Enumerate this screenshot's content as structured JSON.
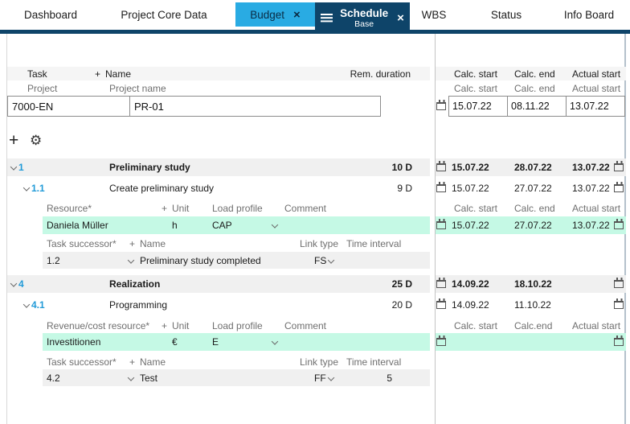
{
  "tabs": {
    "items": [
      {
        "label": "Dashboard"
      },
      {
        "label": "Project Core Data"
      },
      {
        "label": "Budget"
      },
      {
        "label": "Schedule",
        "sublabel": "Base"
      },
      {
        "label": "WBS"
      },
      {
        "label": "Status"
      },
      {
        "label": "Info Board"
      }
    ]
  },
  "glyphs": {
    "plus": "+",
    "close": "×",
    "gear": "⚙"
  },
  "colors": {
    "accent_cyan": "#29abe3",
    "accent_navy": "#0e4469",
    "row_green": "#c5f9e5",
    "row_gray": "#f0f0f0",
    "task_number_blue": "#229bd8"
  },
  "grid": {
    "left_header": {
      "task": "Task",
      "name": "Name",
      "rem_duration": "Rem. duration"
    },
    "right_header": {
      "calc_start": "Calc. start",
      "calc_end": "Calc. end",
      "actual_start": "Actual start"
    },
    "project": {
      "label_id": "Project",
      "label_name": "Project name",
      "id": "7000-EN",
      "name": "PR-01",
      "sub_calc_start": "Calc. start",
      "sub_calc_end": "Calc. end",
      "sub_actual_start": "Actual start",
      "calc_start": "15.07.22",
      "calc_end": "08.11.22",
      "actual_start": "13.07.22"
    }
  },
  "sections": [
    {
      "number": "1",
      "name": "Preliminary study",
      "duration": "10 D",
      "calc_start": "15.07.22",
      "calc_end": "28.07.22",
      "actual_start": "13.07.22",
      "child": {
        "number": "1.1",
        "name": "Create preliminary study",
        "duration": "9 D",
        "calc_start": "15.07.22",
        "calc_end": "27.07.22",
        "actual_start": "13.07.22"
      },
      "resource_header": {
        "name": "Resource*",
        "unit": "Unit",
        "load": "Load profile",
        "comment": "Comment"
      },
      "date_subheader": {
        "calc_start": "Calc. start",
        "calc_end": "Calc. end",
        "actual_start": "Actual start"
      },
      "resource": {
        "name": "Daniela Müller",
        "unit": "h",
        "load": "CAP",
        "calc_start": "15.07.22",
        "calc_end": "27.07.22",
        "actual_start": "13.07.22"
      },
      "successor_header": {
        "id": "Task successor*",
        "name": "Name",
        "link": "Link type",
        "interval": "Time interval"
      },
      "successor": {
        "id": "1.2",
        "name": "Preliminary study completed",
        "link": "FS",
        "interval": ""
      }
    },
    {
      "number": "4",
      "name": "Realization",
      "duration": "25 D",
      "calc_start": "14.09.22",
      "calc_end": "18.10.22",
      "actual_start": "",
      "child": {
        "number": "4.1",
        "name": "Programming",
        "duration": "20 D",
        "calc_start": "14.09.22",
        "calc_end": "11.10.22",
        "actual_start": ""
      },
      "resource_header": {
        "name": "Revenue/cost resource*",
        "unit": "Unit",
        "load": "Load profile",
        "comment": "Comment"
      },
      "date_subheader": {
        "calc_start": "Calc. start",
        "calc_end": "Calc.end",
        "actual_start": "Actual start"
      },
      "resource": {
        "name": "Investitionen",
        "unit": "€",
        "load": "E",
        "calc_start": "",
        "calc_end": "",
        "actual_start": ""
      },
      "successor_header": {
        "id": "Task successor*",
        "name": "Name",
        "link": "Link type",
        "interval": "Time interval"
      },
      "successor": {
        "id": "4.2",
        "name": "Test",
        "link": "FF",
        "interval": "5"
      }
    }
  ]
}
